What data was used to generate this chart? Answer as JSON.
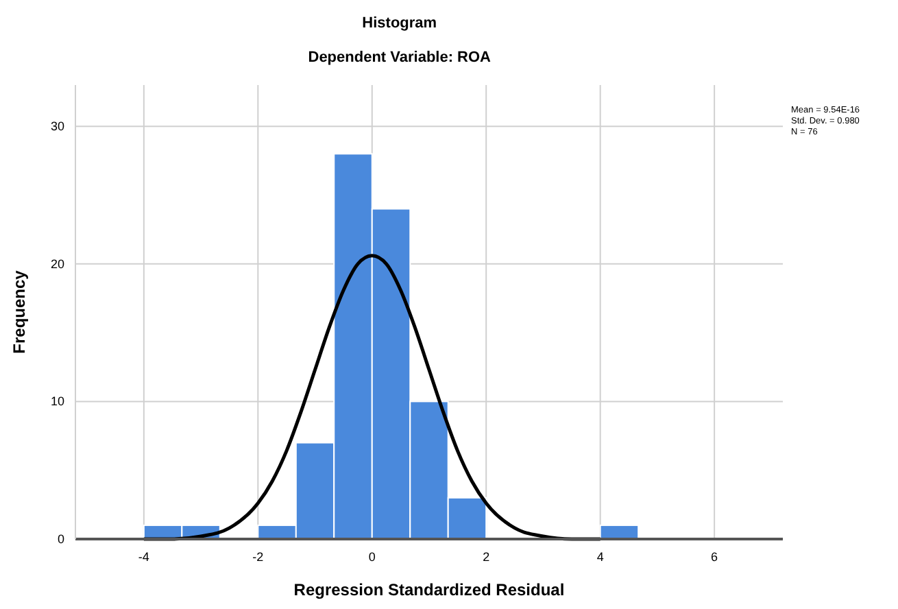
{
  "chart_data": {
    "type": "histogram",
    "title": "Histogram",
    "subtitle": "Dependent Variable: ROA",
    "xlabel": "Regression Standardized Residual",
    "ylabel": "Frequency",
    "bins": [
      -4,
      -3.333,
      -2.667,
      -2,
      -1.333,
      -0.667,
      0,
      0.667,
      1.333,
      2,
      2.667,
      3.333,
      4,
      4.667
    ],
    "values": [
      1,
      1,
      0,
      1,
      7,
      28,
      24,
      10,
      3,
      0,
      0,
      0,
      1
    ],
    "color": "#4a89dc",
    "series": [
      {
        "type": "line",
        "color": "#000000",
        "x": [
          -4,
          -3.5,
          -3,
          -2.5,
          -2,
          -1.75,
          -1.5,
          -1.25,
          -1,
          -0.75,
          -0.5,
          -0.25,
          0,
          0.25,
          0.5,
          0.75,
          1,
          1.25,
          1.5,
          1.75,
          2,
          2.5,
          3,
          3.5,
          4
        ],
        "values": [
          0,
          0,
          0.2,
          0.8,
          2.6,
          4.2,
          6.4,
          9.2,
          12.3,
          15.4,
          18.1,
          20,
          20.6,
          20,
          18.1,
          15.4,
          12.3,
          9.2,
          6.4,
          4.2,
          2.6,
          0.8,
          0.2,
          0,
          0
        ]
      }
    ],
    "xlim": [
      -5.2,
      7.2
    ],
    "xticks": [
      -4,
      -2,
      0,
      2,
      4,
      6
    ],
    "ylim": [
      0,
      33
    ],
    "yticks": [
      0,
      10,
      20,
      30
    ],
    "grid": true,
    "annotations": [
      "Mean = 9.54E-16",
      "Std. Dev. = 0.980",
      "N = 76"
    ]
  }
}
